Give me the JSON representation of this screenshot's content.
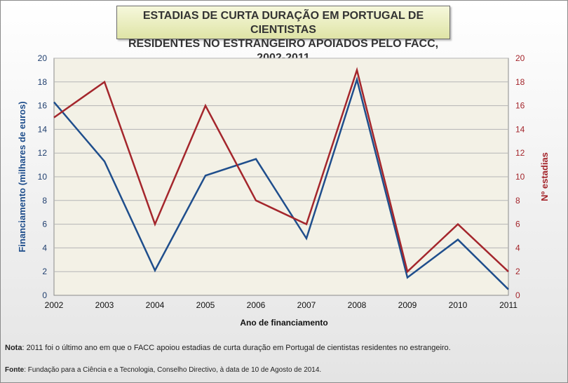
{
  "chart_data": {
    "type": "line",
    "title_line1": "ESTADIAS DE CURTA DURAÇÃO EM PORTUGAL DE CIENTISTAS",
    "title_line2": "RESIDENTES NO ESTRANGEIRO APOIADOS PELO FACC, 2002-2011",
    "xlabel": "Ano de financiamento",
    "ylabel_left": "Financiamento (milhares de euros)",
    "ylabel_right": "Nº estadias",
    "categories": [
      "2002",
      "2003",
      "2004",
      "2005",
      "2006",
      "2007",
      "2008",
      "2009",
      "2010",
      "2011"
    ],
    "ylim_left": [
      0,
      20
    ],
    "ylim_right": [
      0,
      20
    ],
    "yticks": [
      0,
      2,
      4,
      6,
      8,
      10,
      12,
      14,
      16,
      18,
      20
    ],
    "grid": true,
    "series": [
      {
        "values": [
          16.3,
          11.3,
          2.1,
          10.1,
          11.5,
          4.8,
          18.2,
          1.5,
          4.7,
          0.5
        ],
        "axis": "left",
        "color": "#1f4e8c"
      },
      {
        "values": [
          15,
          18,
          6,
          16,
          8,
          6,
          19,
          2,
          6,
          2
        ],
        "axis": "right",
        "color": "#a4262c"
      }
    ]
  },
  "note": {
    "label": "Nota",
    "text": ": 2011 foi o último ano em que o FACC apoiou estadias de curta duração em Portugal de cientistas residentes no estrangeiro."
  },
  "source": {
    "label": "Fonte",
    "text": ": Fundação para a Ciência e a Tecnologia, Conselho Directivo, à data de 10 de Agosto de 2014."
  }
}
